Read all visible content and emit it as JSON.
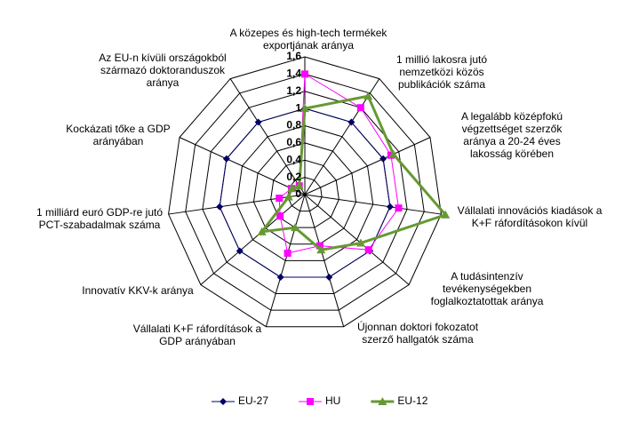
{
  "chart_data": {
    "type": "radar",
    "categories": [
      "A közepes és high-tech termékek exportjának aránya",
      "1 millió lakosra jutó nemzetközi közös publikációk száma",
      "A legalább középfokú végzettséget szerzők aránya a 20-24 éves lakosság körében",
      "Vállalati innovációs kiadások a K+F ráfordításokon kívül",
      "A tudásintenzív tevékenységekben foglalkoztatottak aránya",
      "Újonnan doktori fokozatot szerző hallgatók száma",
      "Vállalati K+F ráfordítások a GDP arányában",
      "Innovatív KKV-k aránya",
      "1 milliárd euró GDP-re jutó PCT-szabadalmak száma",
      "Kockázati tőke a GDP arányában",
      "Az EU-n kívüli országokból származó doktoranduszok aránya"
    ],
    "series": [
      {
        "name": "EU-27",
        "color": "#000066",
        "marker": "diamond",
        "values": [
          1,
          1,
          1,
          1,
          1,
          1,
          1,
          1,
          1,
          1,
          1
        ]
      },
      {
        "name": "HU",
        "color": "#ff00ff",
        "marker": "square",
        "values": [
          1.4,
          1.2,
          1.1,
          1.1,
          0.98,
          0.62,
          0.71,
          0.38,
          0.3,
          0.17,
          0.12
        ]
      },
      {
        "name": "EU-12",
        "color": "#669933",
        "marker": "triangle",
        "values": [
          1.0,
          1.36,
          1.13,
          1.65,
          0.86,
          0.67,
          0.4,
          0.66,
          0.19,
          0.17,
          0.12
        ]
      }
    ],
    "rlim": [
      0,
      1.6
    ],
    "rticks": [
      0,
      {
        "value": 0.2,
        "label": "0,2"
      },
      {
        "value": 0.4,
        "label": "0,4"
      },
      {
        "value": 0.6,
        "label": "0,6"
      },
      {
        "value": 0.8,
        "label": "0,8"
      },
      1,
      {
        "value": 1.2,
        "label": "1,2"
      },
      {
        "value": 1.4,
        "label": "1,4"
      },
      {
        "value": 1.6,
        "label": "1,6"
      }
    ],
    "grid": true,
    "legend": "bottom"
  }
}
